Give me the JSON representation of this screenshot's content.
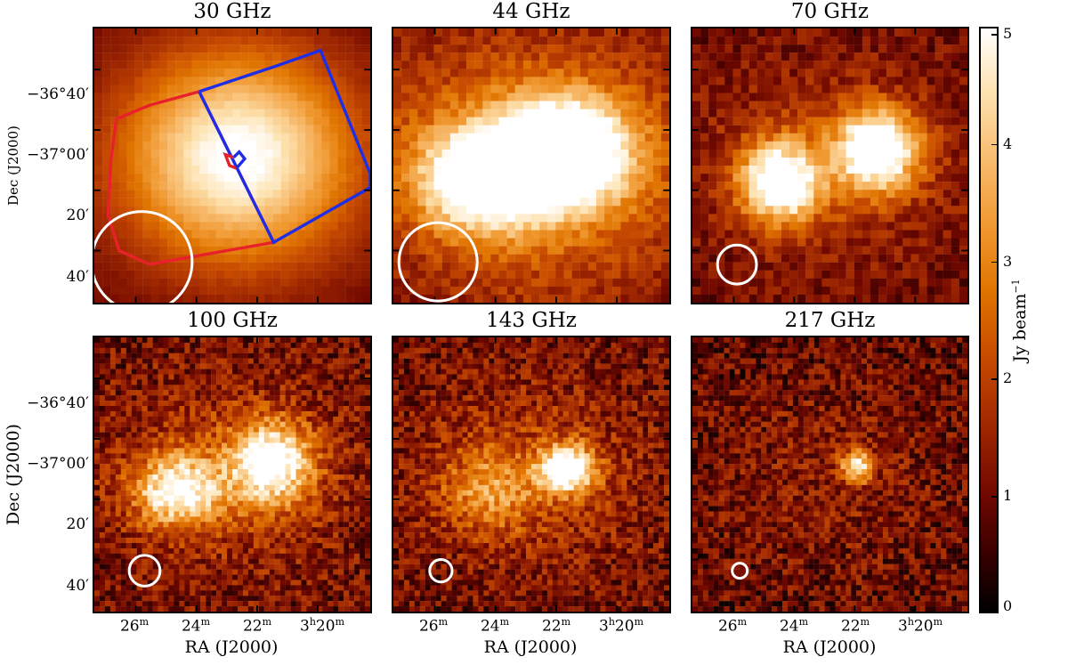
{
  "figure": {
    "panels": [
      {
        "title": "30 GHz"
      },
      {
        "title": "44 GHz"
      },
      {
        "title": "70 GHz"
      },
      {
        "title": "100 GHz"
      },
      {
        "title": "143 GHz"
      },
      {
        "title": "217 GHz"
      }
    ],
    "y_axis": {
      "label": "Dec (J2000)",
      "ticks": [
        "−36°40′",
        "−37°00′",
        "20′",
        "40′"
      ]
    },
    "x_axis": {
      "label": "RA (J2000)",
      "ticks": [
        "26",
        "24",
        "22",
        "3",
        "20"
      ],
      "tick_units": {
        "minutes": "m",
        "hours": "h"
      }
    },
    "colorbar": {
      "label": "Jy beam",
      "label_exponent": "−1",
      "ticks": [
        "0",
        "1",
        "2",
        "3",
        "4",
        "5"
      ],
      "range": [
        0,
        5
      ],
      "colormap": "afmhot"
    },
    "overlay_colors": {
      "red": "#e8202a",
      "blue": "#1f2de6",
      "white": "#ffffff"
    },
    "beam_sizes": {
      "30 GHz": "large",
      "44 GHz": "large",
      "70 GHz": "medium",
      "100 GHz": "small",
      "143 GHz": "smaller",
      "217 GHz": "smallest"
    }
  }
}
